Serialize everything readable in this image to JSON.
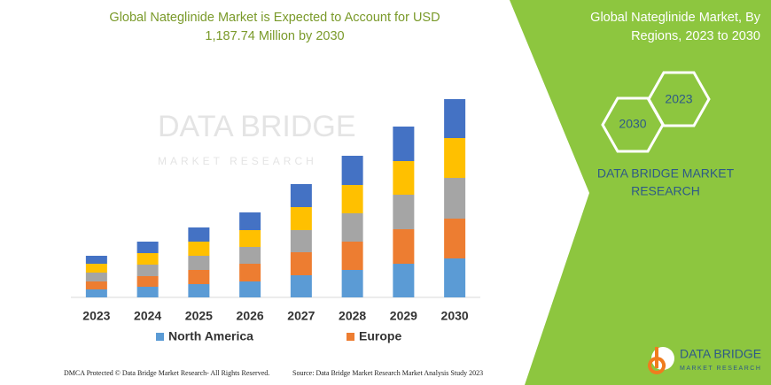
{
  "chart_data": {
    "type": "bar",
    "stacked": true,
    "title": [
      "Global Nateglinide Market is Expected to Account for USD",
      "1,187.74 Million by 2030"
    ],
    "categories": [
      "2023",
      "2024",
      "2025",
      "2026",
      "2027",
      "2028",
      "2029",
      "2030"
    ],
    "series": [
      {
        "name": "North America",
        "color": "#5b9bd5",
        "values": [
          9,
          12,
          15,
          18,
          25,
          31,
          38,
          44
        ]
      },
      {
        "name": "Europe",
        "color": "#ed7d31",
        "values": [
          9,
          12,
          16,
          20,
          26,
          32,
          39,
          45
        ]
      },
      {
        "color": "#a5a5a5",
        "values": [
          10,
          13,
          16,
          19,
          25,
          32,
          39,
          46
        ]
      },
      {
        "color": "#ffc000",
        "values": [
          10,
          13,
          16,
          19,
          26,
          32,
          38,
          45
        ]
      },
      {
        "color": "#4472c4",
        "values": [
          9,
          13,
          16,
          20,
          26,
          33,
          39,
          44
        ]
      }
    ]
  },
  "watermark": {
    "brand": "DATA BRIDGE",
    "sub": "MARKET RESEARCH"
  },
  "sidebar": {
    "title": [
      "Global Nateglinide Market, By",
      "Regions, 2023 to 2030"
    ],
    "hexagons": [
      "2023",
      "2030"
    ],
    "brand": [
      "DATA BRIDGE MARKET",
      "RESEARCH"
    ]
  },
  "logo": {
    "brand": "DATA BRIDGE",
    "sub": "MARKET RESEARCH"
  },
  "footer": {
    "left": "DMCA Protected © Data Bridge Market Research- All Rights Reserved.",
    "right": "Source: Data Bridge Market Research  Market Analysis Study 2023"
  }
}
